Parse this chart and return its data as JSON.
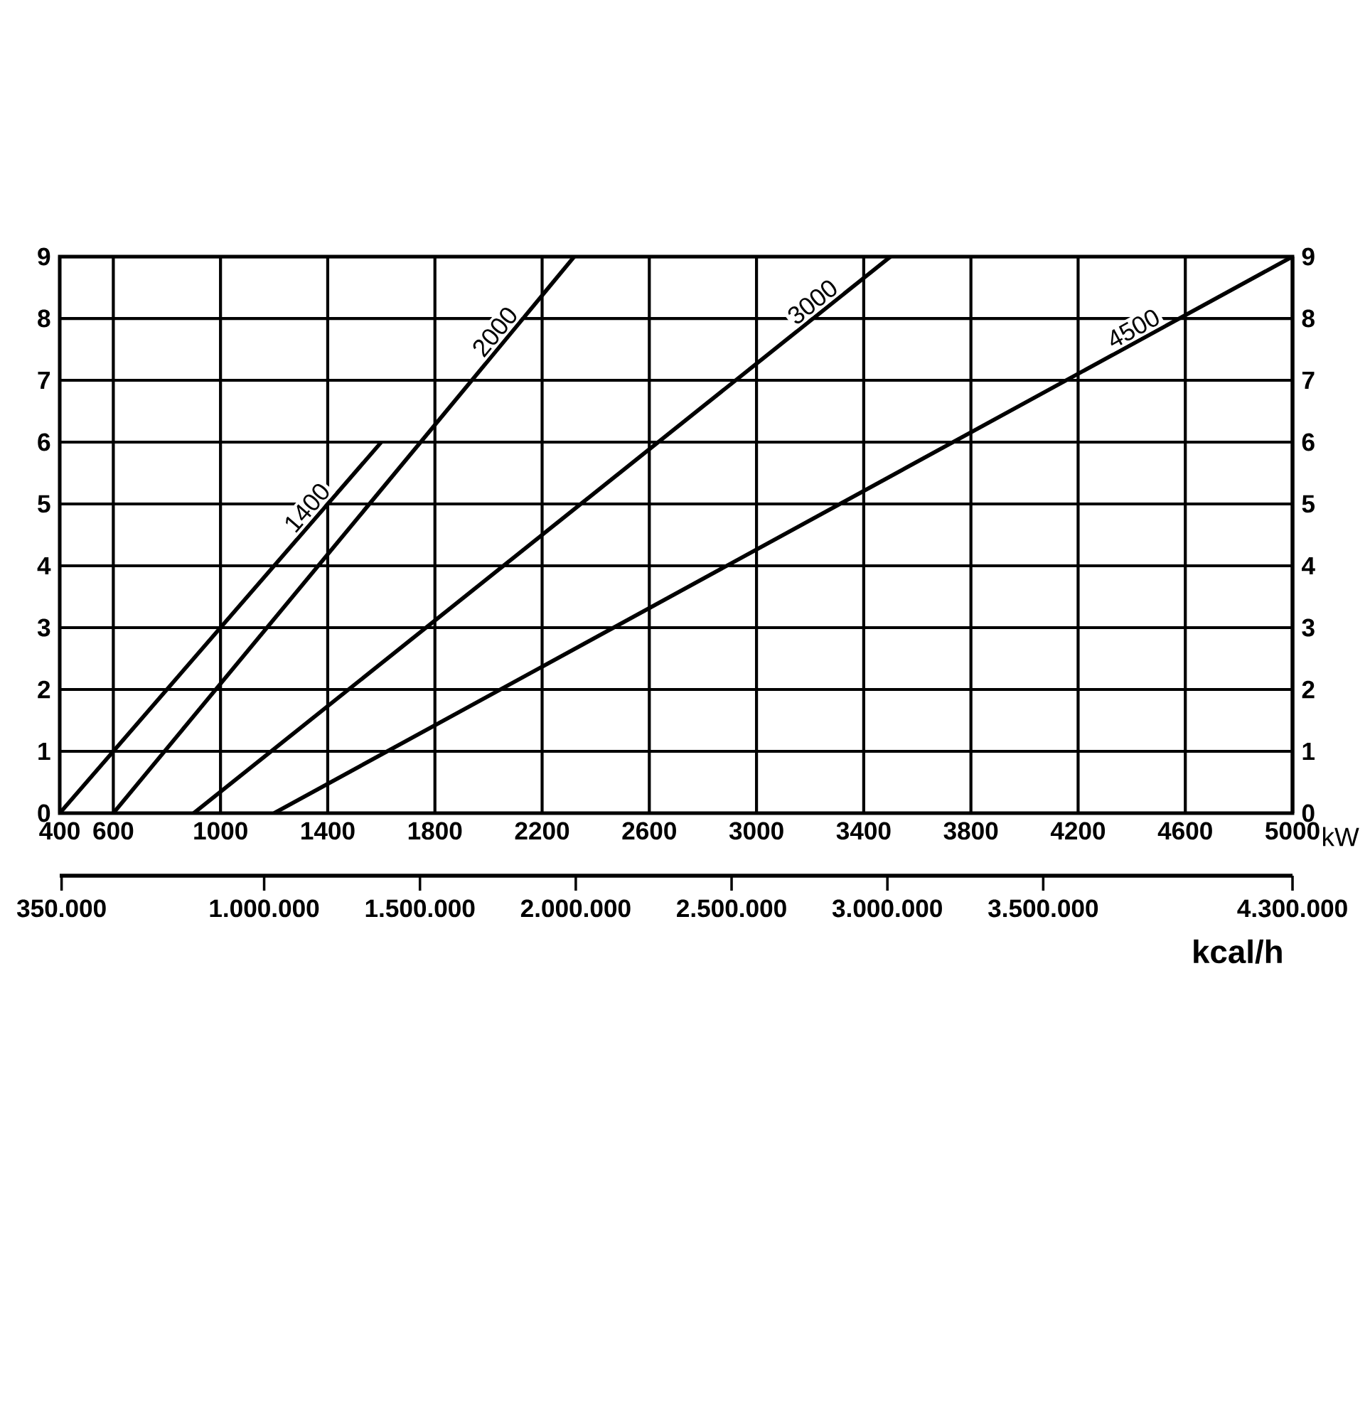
{
  "chart_data": {
    "type": "line",
    "xlabel": "kW",
    "x2label": "kcal/h",
    "xlim": [
      400,
      5000
    ],
    "xticks": [
      400,
      600,
      1000,
      1400,
      1800,
      2200,
      2600,
      3000,
      3400,
      3800,
      4200,
      4600,
      5000
    ],
    "x2lim": [
      344000,
      4300000
    ],
    "x2ticks": [
      {
        "value": 350000,
        "label": "350.000"
      },
      {
        "value": 1000000,
        "label": "1.000.000"
      },
      {
        "value": 1500000,
        "label": "1.500.000"
      },
      {
        "value": 2000000,
        "label": "2.000.000"
      },
      {
        "value": 2500000,
        "label": "2.500.000"
      },
      {
        "value": 3000000,
        "label": "3.000.000"
      },
      {
        "value": 3500000,
        "label": "3.500.000"
      },
      {
        "value": 4300000,
        "label": "4.300.000"
      }
    ],
    "ylim": [
      0,
      9
    ],
    "yticks": [
      0,
      1,
      2,
      3,
      4,
      5,
      6,
      7,
      8,
      9
    ],
    "y2lim": [
      0,
      9
    ],
    "y2ticks": [
      0,
      1,
      2,
      3,
      4,
      5,
      6,
      7,
      8,
      9
    ],
    "grid": true,
    "marker": "none",
    "line_style": "solid",
    "series": [
      {
        "name": "1400",
        "color": "#000000",
        "x": [
          400,
          1600
        ],
        "values": [
          0,
          6
        ]
      },
      {
        "name": "2000",
        "color": "#000000",
        "x": [
          600,
          2320
        ],
        "values": [
          0,
          9
        ]
      },
      {
        "name": "3000",
        "color": "#000000",
        "x": [
          900,
          3500
        ],
        "values": [
          0,
          9
        ]
      },
      {
        "name": "4500",
        "color": "#000000",
        "x": [
          1200,
          5000
        ],
        "values": [
          0,
          9
        ]
      }
    ]
  }
}
